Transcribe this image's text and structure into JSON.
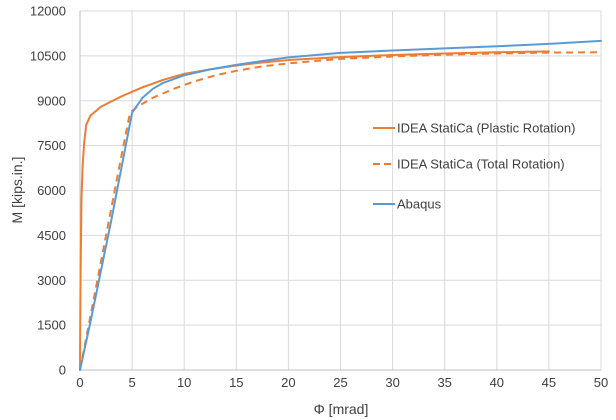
{
  "chart_data": {
    "type": "line",
    "title": "",
    "xlabel": "Φ [mrad]",
    "ylabel": "M [kips.in.]",
    "xlim": [
      0,
      50
    ],
    "ylim": [
      0,
      12000
    ],
    "x_ticks": [
      "0",
      "5",
      "10",
      "15",
      "20",
      "25",
      "30",
      "35",
      "40",
      "45",
      "50"
    ],
    "y_ticks": [
      "0",
      "1500",
      "3000",
      "4500",
      "6000",
      "7500",
      "9000",
      "10500",
      "12000"
    ],
    "grid": "vertical and horizontal",
    "legend_position": "right",
    "series": [
      {
        "name": "IDEA StatiCa (Plastic Rotation)",
        "color": "#ED7D31",
        "style": "solid",
        "points": [
          [
            0,
            0
          ],
          [
            0.02,
            1500
          ],
          [
            0.05,
            3000
          ],
          [
            0.1,
            4500
          ],
          [
            0.15,
            5800
          ],
          [
            0.25,
            6800
          ],
          [
            0.4,
            7600
          ],
          [
            0.6,
            8200
          ],
          [
            1,
            8500
          ],
          [
            2,
            8800
          ],
          [
            4,
            9150
          ],
          [
            6,
            9450
          ],
          [
            8,
            9700
          ],
          [
            10,
            9900
          ],
          [
            12.5,
            10050
          ],
          [
            15,
            10180
          ],
          [
            17.5,
            10280
          ],
          [
            20,
            10360
          ],
          [
            25,
            10460
          ],
          [
            30,
            10530
          ],
          [
            35,
            10580
          ],
          [
            40,
            10620
          ],
          [
            45,
            10650
          ]
        ]
      },
      {
        "name": "IDEA StatiCa (Total Rotation)",
        "color": "#ED7D31",
        "style": "dashed",
        "points": [
          [
            0,
            0
          ],
          [
            0.5,
            900
          ],
          [
            1,
            1800
          ],
          [
            2,
            3600
          ],
          [
            3,
            5400
          ],
          [
            4,
            7200
          ],
          [
            4.8,
            8600
          ],
          [
            5.5,
            8800
          ],
          [
            7,
            9100
          ],
          [
            9,
            9400
          ],
          [
            11,
            9650
          ],
          [
            13,
            9850
          ],
          [
            15,
            10000
          ],
          [
            17.5,
            10150
          ],
          [
            20,
            10250
          ],
          [
            25,
            10400
          ],
          [
            30,
            10480
          ],
          [
            35,
            10540
          ],
          [
            40,
            10580
          ],
          [
            45,
            10610
          ],
          [
            50,
            10620
          ]
        ]
      },
      {
        "name": "Abaqus",
        "color": "#5B9BD5",
        "style": "solid",
        "points": [
          [
            0,
            0
          ],
          [
            1,
            1600
          ],
          [
            2,
            3300
          ],
          [
            3,
            5000
          ],
          [
            4,
            6800
          ],
          [
            5,
            8600
          ],
          [
            6,
            9100
          ],
          [
            7,
            9400
          ],
          [
            8,
            9600
          ],
          [
            10,
            9850
          ],
          [
            12.5,
            10050
          ],
          [
            15,
            10200
          ],
          [
            17.5,
            10330
          ],
          [
            20,
            10450
          ],
          [
            25,
            10600
          ],
          [
            30,
            10680
          ],
          [
            35,
            10750
          ],
          [
            40,
            10820
          ],
          [
            45,
            10900
          ],
          [
            50,
            11000
          ]
        ]
      }
    ]
  }
}
